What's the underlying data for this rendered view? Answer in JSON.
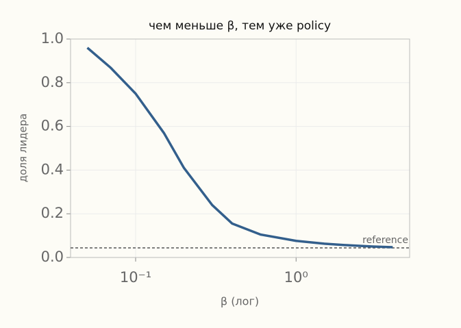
{
  "chart_data": {
    "type": "line",
    "title": "чем меньше β, тем уже policy",
    "x_label": "β (лог)",
    "y_label": "доля лидера",
    "x": [
      0.05,
      0.07,
      0.1,
      0.15,
      0.2,
      0.3,
      0.4,
      0.6,
      1,
      1.5,
      2,
      3,
      4
    ],
    "series": [
      {
        "name": "доля лидера",
        "color": "#335f8c",
        "values": [
          0.96,
          0.868,
          0.75,
          0.57,
          0.41,
          0.24,
          0.155,
          0.105,
          0.076,
          0.063,
          0.057,
          0.05,
          0.047
        ]
      }
    ],
    "reference": {
      "label": "reference",
      "value": 0.044,
      "color": "#555555"
    },
    "xscale": "log",
    "xlim": [
      0.0393,
      5.1
    ],
    "ylim": [
      0,
      1.0
    ],
    "xticks": [
      {
        "value": 0.1,
        "label": "10⁻¹"
      },
      {
        "value": 1,
        "label": "10⁰"
      }
    ],
    "yticks": [
      {
        "value": 0,
        "label": "0.0"
      },
      0.2,
      0.4,
      0.6,
      0.8,
      {
        "value": 1.0,
        "label": "1.0"
      }
    ],
    "grid": true
  }
}
